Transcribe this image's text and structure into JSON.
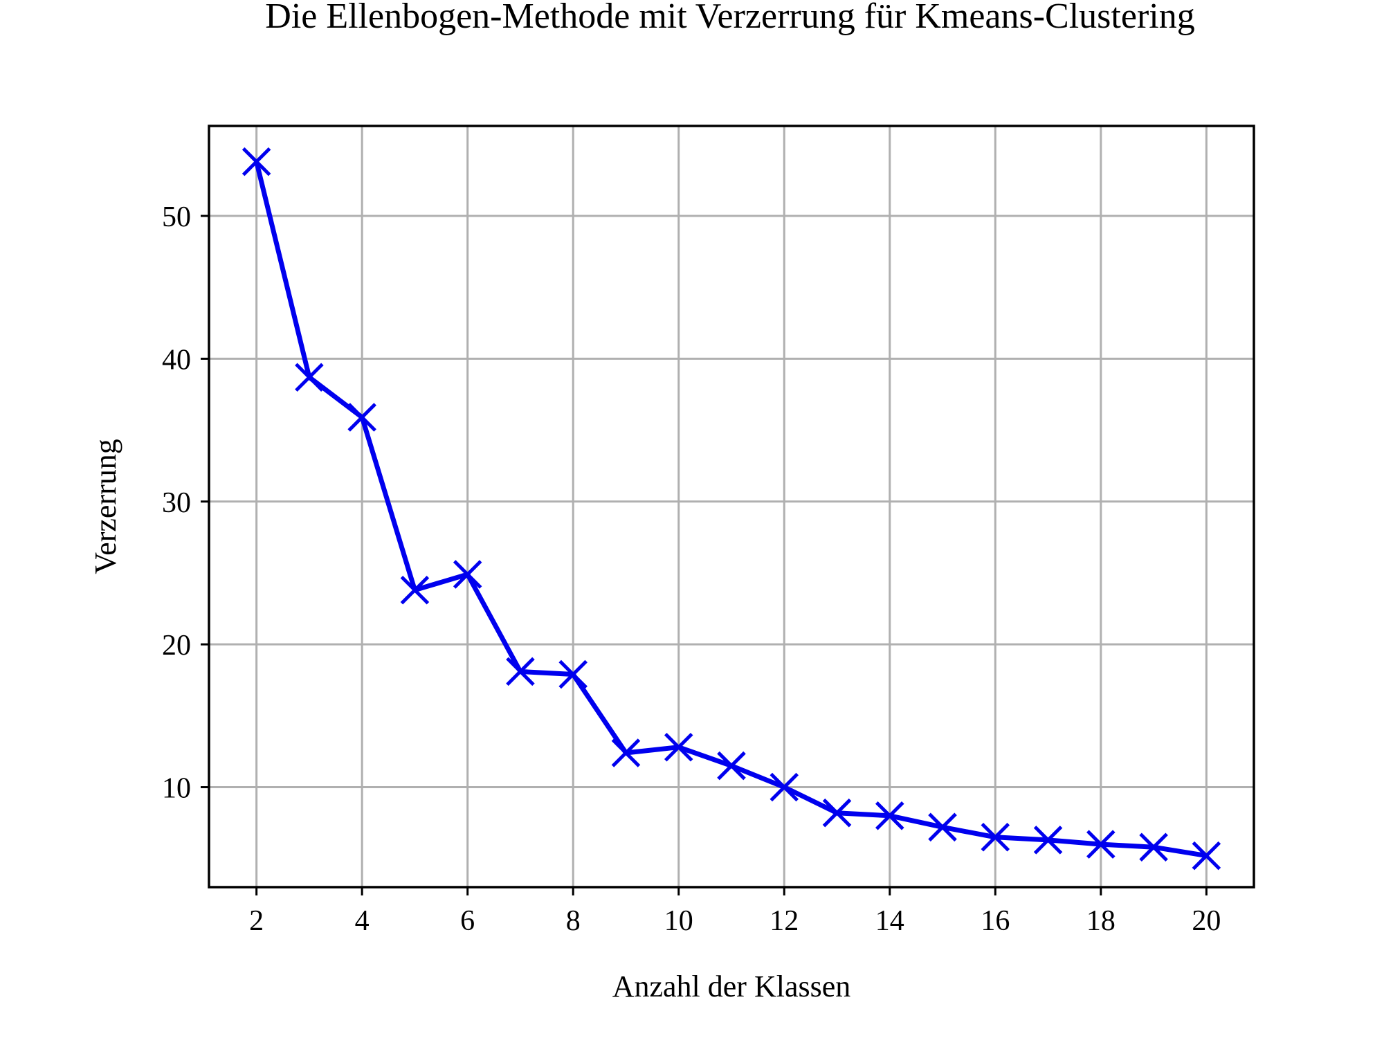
{
  "chart_data": {
    "type": "line",
    "title": "Die Ellenbogen-Methode mit Verzerrung für Kmeans-Clustering",
    "xlabel": "Anzahl der Klassen",
    "ylabel": "Verzerrung",
    "x": [
      2,
      3,
      4,
      5,
      6,
      7,
      8,
      9,
      10,
      11,
      12,
      13,
      14,
      15,
      16,
      17,
      18,
      19,
      20
    ],
    "series": [
      {
        "name": "Verzerrung",
        "marker": "x",
        "color": "#0000ee",
        "values": [
          53.8,
          38.7,
          35.9,
          23.8,
          24.9,
          18.1,
          17.9,
          12.4,
          12.8,
          11.5,
          10.0,
          8.2,
          8.0,
          7.2,
          6.5,
          6.3,
          6.0,
          5.8,
          5.2
        ]
      }
    ],
    "xticks": [
      "2",
      "4",
      "6",
      "8",
      "10",
      "12",
      "14",
      "16",
      "18",
      "20"
    ],
    "xtick_values": [
      2,
      4,
      6,
      8,
      10,
      12,
      14,
      16,
      18,
      20
    ],
    "yticks": [
      "10",
      "20",
      "30",
      "40",
      "50"
    ],
    "ytick_values": [
      10,
      20,
      30,
      40,
      50
    ],
    "xlim": [
      1.1,
      20.9
    ],
    "ylim": [
      3.0,
      56.3
    ],
    "grid": true,
    "grid_color": "#b0b0b0",
    "axis_color": "#000000"
  }
}
